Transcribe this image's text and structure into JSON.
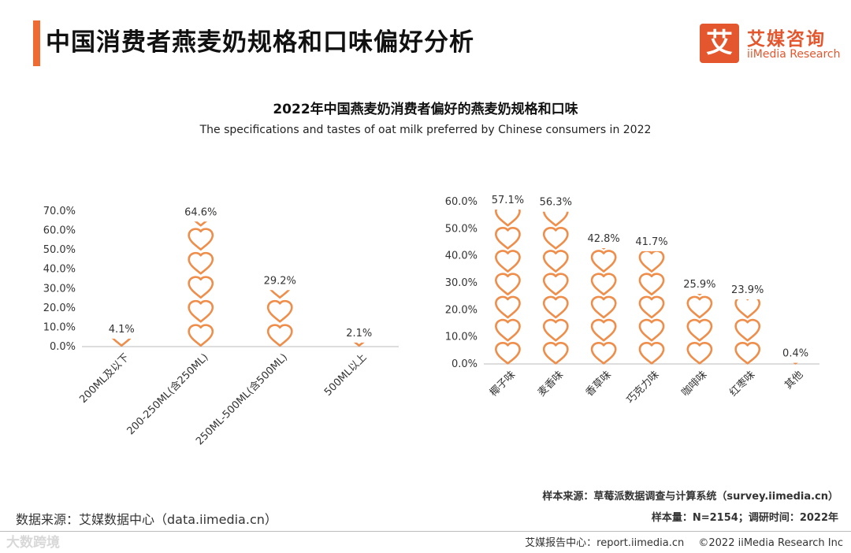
{
  "page": {
    "title": "中国消费者燕麦奶规格和口味偏好分析",
    "logo_mark": "艾",
    "logo_cn": "艾媒咨询",
    "logo_en": "iiMedia Research"
  },
  "chart_header": {
    "title": "2022年中国燕麦奶消费者偏好的燕麦奶规格和口味",
    "subtitle": "The specifications and tastes of oat milk preferred by Chinese consumers in 2022"
  },
  "colors": {
    "accent": "#ee6b32",
    "heart": "#ef8d4a",
    "axis": "#bbbbbb"
  },
  "chart_data": [
    {
      "type": "bar",
      "name": "规格偏好",
      "marker": "heart",
      "categories": [
        "200ML及以下",
        "200-250ML(含250ML)",
        "250ML-500ML(含500ML)",
        "500ML以上"
      ],
      "values": [
        4.1,
        64.6,
        29.2,
        2.1
      ],
      "labels": [
        "4.1%",
        "64.6%",
        "29.2%",
        "2.1%"
      ],
      "ylim": [
        0,
        70
      ],
      "yticks": [
        "0.0%",
        "10.0%",
        "20.0%",
        "30.0%",
        "40.0%",
        "50.0%",
        "60.0%",
        "70.0%"
      ]
    },
    {
      "type": "bar",
      "name": "口味偏好",
      "marker": "heart",
      "categories": [
        "椰子味",
        "麦香味",
        "香草味",
        "巧克力味",
        "咖啡味",
        "红枣味",
        "其他"
      ],
      "values": [
        57.1,
        56.3,
        42.8,
        41.7,
        25.9,
        23.9,
        0.4
      ],
      "labels": [
        "57.1%",
        "56.3%",
        "42.8%",
        "41.7%",
        "25.9%",
        "23.9%",
        "0.4%"
      ],
      "ylim": [
        0,
        60
      ],
      "yticks": [
        "0.0%",
        "10.0%",
        "20.0%",
        "30.0%",
        "40.0%",
        "50.0%",
        "60.0%"
      ]
    }
  ],
  "sources": {
    "data_source": "数据来源：艾媒数据中心（data.iimedia.cn）",
    "sample_source": "样本来源：草莓派数据调查与计算系统（survey.iimedia.cn）",
    "sample_info": "样本量：N=2154；调研时间：2022年"
  },
  "footer": {
    "watermark": "大数跨境",
    "report": "艾媒报告中心：report.iimedia.cn",
    "copyright": "©2022  iiMedia Research  Inc"
  }
}
